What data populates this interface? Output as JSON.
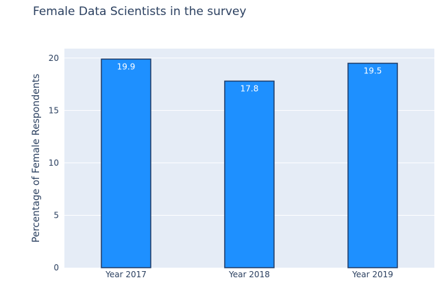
{
  "chart_data": {
    "type": "bar",
    "title": "Female Data Scientists in the survey",
    "xlabel": "",
    "ylabel": "Percentage of Female Respondents",
    "categories": [
      "Year 2017",
      "Year 2018",
      "Year 2019"
    ],
    "values": [
      19.9,
      17.8,
      19.5
    ],
    "value_labels": [
      "19.9",
      "17.8",
      "19.5"
    ],
    "ylim": [
      0,
      20.9
    ],
    "yticks": [
      0,
      5,
      10,
      15,
      20
    ],
    "ytick_labels": [
      "0",
      "5",
      "10",
      "15",
      "20"
    ],
    "grid": true,
    "legend": "none",
    "colors": {
      "plot_background": "#e5ecf6",
      "grid": "#ffffff",
      "bar_fill": "#1e90ff",
      "bar_outline": "#1f3b66",
      "text": "#2a3f5f",
      "data_label": "#ffffff"
    }
  }
}
